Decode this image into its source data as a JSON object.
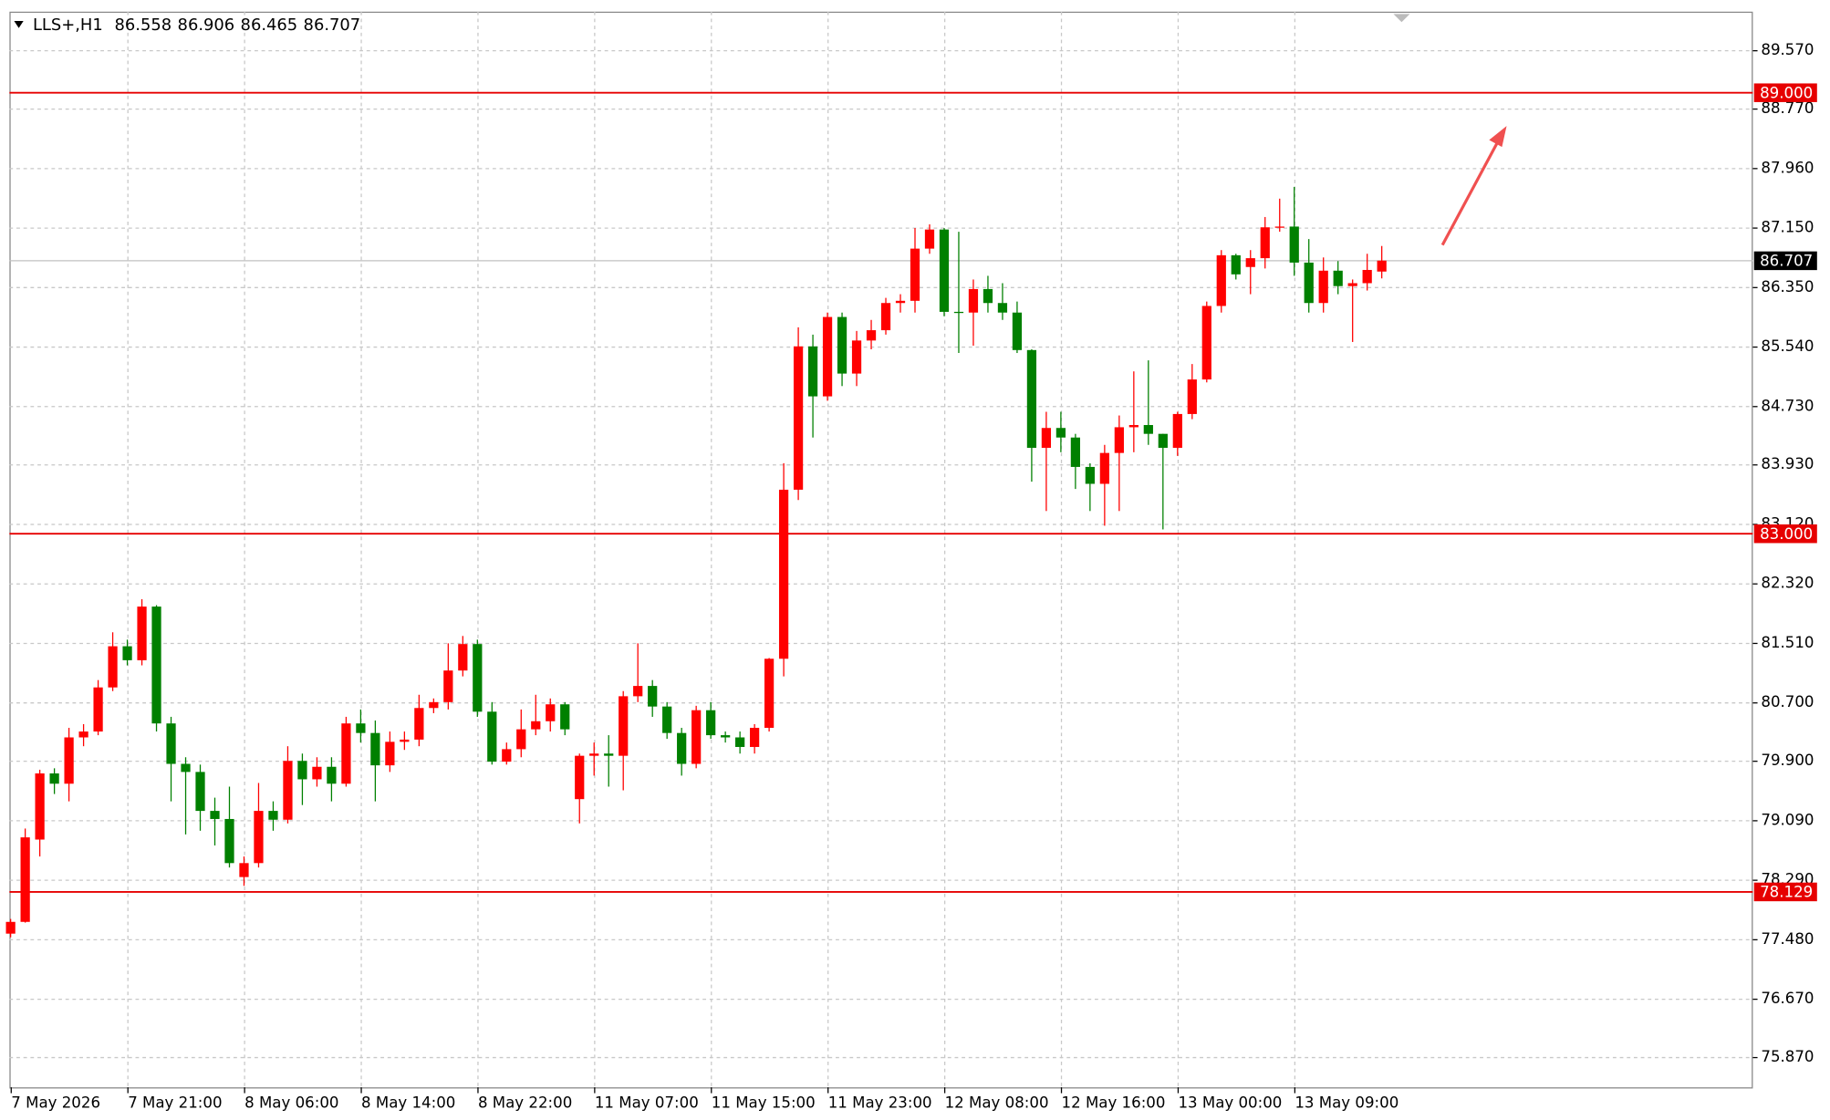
{
  "chart_data": {
    "type": "candlestick",
    "title": "LLS+,H1",
    "categories": [
      "7 May 2026",
      null,
      null,
      null,
      null,
      null,
      null,
      null,
      "7 May 21:00",
      null,
      null,
      null,
      null,
      null,
      null,
      null,
      "8 May 06:00",
      null,
      null,
      null,
      null,
      null,
      null,
      null,
      "8 May 14:00",
      null,
      null,
      null,
      null,
      null,
      null,
      null,
      "8 May 22:00",
      null,
      null,
      null,
      null,
      null,
      null,
      null,
      "11 May 07:00",
      null,
      null,
      null,
      null,
      null,
      null,
      null,
      "11 May 15:00",
      null,
      null,
      null,
      null,
      null,
      null,
      null,
      "11 May 23:00",
      null,
      null,
      null,
      null,
      null,
      null,
      null,
      "12 May 08:00",
      null,
      null,
      null,
      null,
      null,
      null,
      null,
      "12 May 16:00",
      null,
      null,
      null,
      null,
      null,
      null,
      null,
      "13 May 00:00",
      null,
      null,
      null,
      null,
      null,
      null,
      null,
      "13 May 09:00",
      null,
      null,
      null,
      null,
      null,
      null
    ],
    "open": [
      77.55,
      77.71,
      78.83,
      79.73,
      79.59,
      80.22,
      80.3,
      80.9,
      81.46,
      81.27,
      82.0,
      80.41,
      79.86,
      79.75,
      79.22,
      79.11,
      78.32,
      78.51,
      79.22,
      79.1,
      79.9,
      79.65,
      79.82,
      79.59,
      80.41,
      80.28,
      79.84,
      80.16,
      80.19,
      80.62,
      80.7,
      81.13,
      81.49,
      80.57,
      79.89,
      80.06,
      80.33,
      80.44,
      80.67,
      79.38,
      79.97,
      80.0,
      79.97,
      80.78,
      80.92,
      80.64,
      80.28,
      79.86,
      80.59,
      80.25,
      80.22,
      80.09,
      80.35,
      81.29,
      83.59,
      85.54,
      84.86,
      85.94,
      85.17,
      85.62,
      85.76,
      86.13,
      86.16,
      86.87,
      87.13,
      86.01,
      86.0,
      86.32,
      86.13,
      86.0,
      85.49,
      84.16,
      84.43,
      84.3,
      83.9,
      83.67,
      84.09,
      84.44,
      84.47,
      84.35,
      84.16,
      84.62,
      85.09,
      86.09,
      86.78,
      86.62,
      86.74,
      87.16,
      87.17,
      86.68,
      86.13,
      86.57,
      86.36,
      86.4,
      86.558
    ],
    "high": [
      77.75,
      78.98,
      79.78,
      79.8,
      80.35,
      80.4,
      81.0,
      81.65,
      81.55,
      82.1,
      82.02,
      80.5,
      79.95,
      79.85,
      79.4,
      79.55,
      78.6,
      79.6,
      79.35,
      80.1,
      80.0,
      79.95,
      79.95,
      80.5,
      80.6,
      80.45,
      80.3,
      80.3,
      80.8,
      80.75,
      81.5,
      81.6,
      81.55,
      80.7,
      80.15,
      80.6,
      80.8,
      80.75,
      80.7,
      80.0,
      80.15,
      80.25,
      80.85,
      81.5,
      81.0,
      80.7,
      80.35,
      80.65,
      80.7,
      80.3,
      80.3,
      80.4,
      81.3,
      83.95,
      85.8,
      85.7,
      86.0,
      86.0,
      85.75,
      85.9,
      86.2,
      86.25,
      87.15,
      87.2,
      87.15,
      87.1,
      86.45,
      86.5,
      86.4,
      86.15,
      85.5,
      84.65,
      84.65,
      84.35,
      83.95,
      84.2,
      84.6,
      85.2,
      85.35,
      84.35,
      84.65,
      85.3,
      86.15,
      86.85,
      86.8,
      86.85,
      87.3,
      87.55,
      87.71,
      87.0,
      86.75,
      86.7,
      86.45,
      86.8,
      86.906
    ],
    "low": [
      77.5,
      77.7,
      78.6,
      79.45,
      79.35,
      80.1,
      80.25,
      80.85,
      81.2,
      81.2,
      80.3,
      79.35,
      78.9,
      78.95,
      78.75,
      78.45,
      78.2,
      78.45,
      78.95,
      79.05,
      79.3,
      79.55,
      79.35,
      79.55,
      80.15,
      79.35,
      79.75,
      80.05,
      80.1,
      80.55,
      80.6,
      81.05,
      80.5,
      79.85,
      79.85,
      79.95,
      80.25,
      80.3,
      80.25,
      79.05,
      79.7,
      79.55,
      79.5,
      80.7,
      80.5,
      80.2,
      79.7,
      79.8,
      80.2,
      80.15,
      80.0,
      80.0,
      80.3,
      81.05,
      83.45,
      84.3,
      84.8,
      85.0,
      85.0,
      85.5,
      85.7,
      86.0,
      86.0,
      86.8,
      85.95,
      85.45,
      85.55,
      86.0,
      85.9,
      85.45,
      83.7,
      83.3,
      84.1,
      83.6,
      83.3,
      83.1,
      83.3,
      84.1,
      84.2,
      83.05,
      84.05,
      84.55,
      85.05,
      86.0,
      86.45,
      86.25,
      86.6,
      87.1,
      86.5,
      86.0,
      86.0,
      86.25,
      85.6,
      86.3,
      86.465
    ],
    "close": [
      77.71,
      78.86,
      79.73,
      79.59,
      80.22,
      80.3,
      80.9,
      81.46,
      81.27,
      82.0,
      80.41,
      79.86,
      79.75,
      79.22,
      79.11,
      78.51,
      78.51,
      79.22,
      79.1,
      79.9,
      79.65,
      79.82,
      79.59,
      80.41,
      80.28,
      79.84,
      80.16,
      80.19,
      80.62,
      80.7,
      81.13,
      81.49,
      80.57,
      79.89,
      80.06,
      80.33,
      80.44,
      80.67,
      80.33,
      79.97,
      80.0,
      79.97,
      80.78,
      80.92,
      80.64,
      80.28,
      79.86,
      80.59,
      80.25,
      80.22,
      80.09,
      80.35,
      81.29,
      83.59,
      85.54,
      84.86,
      85.94,
      85.17,
      85.62,
      85.76,
      86.13,
      86.16,
      86.87,
      87.13,
      86.01,
      86.0,
      86.32,
      86.13,
      86.0,
      85.49,
      84.16,
      84.43,
      84.3,
      83.9,
      83.67,
      84.09,
      84.44,
      84.47,
      84.35,
      84.16,
      84.62,
      85.09,
      86.09,
      86.78,
      86.52,
      86.74,
      87.16,
      87.17,
      86.68,
      86.13,
      86.57,
      86.36,
      86.4,
      86.58,
      86.707
    ],
    "up_color": "#ff0000",
    "down_color": "#008000",
    "ylim": [
      75.459,
      90.094
    ],
    "yticks": [
      {
        "value": 75.87,
        "label": "75.870"
      },
      {
        "value": 76.67,
        "label": "76.670"
      },
      {
        "value": 77.48,
        "label": "77.480"
      },
      {
        "value": 78.29,
        "label": "78.290"
      },
      {
        "value": 79.09,
        "label": "79.090"
      },
      {
        "value": 79.9,
        "label": "79.900"
      },
      {
        "value": 80.7,
        "label": "80.700"
      },
      {
        "value": 81.51,
        "label": "81.510"
      },
      {
        "value": 82.32,
        "label": "82.320"
      },
      {
        "value": 83.12,
        "label": "83.120"
      },
      {
        "value": 83.93,
        "label": "83.930"
      },
      {
        "value": 84.73,
        "label": "84.730"
      },
      {
        "value": 85.54,
        "label": "85.540"
      },
      {
        "value": 86.35,
        "label": "86.350"
      },
      {
        "value": 87.15,
        "label": "87.150"
      },
      {
        "value": 87.96,
        "label": "87.960"
      },
      {
        "value": 88.77,
        "label": "88.770"
      },
      {
        "value": 89.57,
        "label": "89.570"
      }
    ],
    "grid": true,
    "levels": [
      {
        "value": 89,
        "label": "89.000"
      },
      {
        "value": 83,
        "label": "83.000"
      },
      {
        "value": 78.129,
        "label": "78.129"
      }
    ],
    "levels_color": "#e60000"
  }
}
